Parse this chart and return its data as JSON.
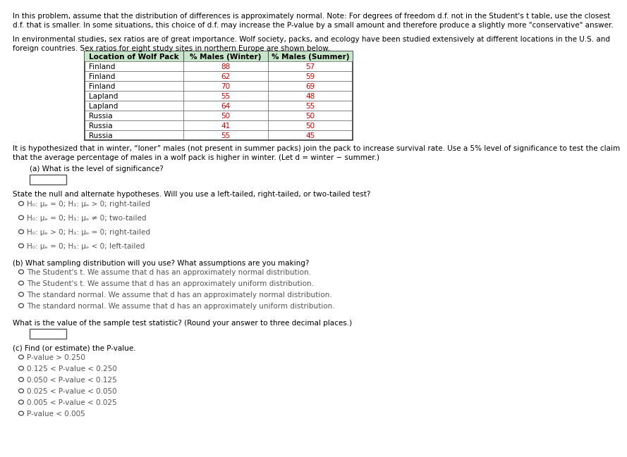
{
  "bg_color": "#ffffff",
  "text_color": "#000000",
  "red_color": "#cc0000",
  "gray_color": "#888888",
  "header_bg": "#c8e6c9",
  "intro_line1": "In this problem, assume that the distribution of differences is approximately normal. Note: For degrees of freedom d.f. not in the Student's t table, use the closest",
  "intro_line2": "d.f. that is smaller. In some situations, this choice of d.f. may increase the P-value by a small amount and therefore produce a slightly more \"conservative\" answer.",
  "para2_line1": "In environmental studies, sex ratios are of great importance. Wolf society, packs, and ecology have been studied extensively at different locations in the U.S. and",
  "para2_line2": "foreign countries. Sex ratios for eight study sites in northern Europe are shown below.",
  "table_header": [
    "Location of Wolf Pack",
    "% Males (Winter)",
    "% Males (Summer)"
  ],
  "table_data": [
    [
      "Finland",
      "88",
      "57"
    ],
    [
      "Finland",
      "62",
      "59"
    ],
    [
      "Finland",
      "70",
      "69"
    ],
    [
      "Lapland",
      "55",
      "48"
    ],
    [
      "Lapland",
      "64",
      "55"
    ],
    [
      "Russia",
      "50",
      "50"
    ],
    [
      "Russia",
      "41",
      "50"
    ],
    [
      "Russia",
      "55",
      "45"
    ]
  ],
  "hyp_line1": "It is hypothesized that in winter, “loner” males (not present in summer packs) join the pack to increase survival rate. Use a 5% level of significance to test the claim",
  "hyp_line2": "that the average percentage of males in a wolf pack is higher in winter. (Let d = winter − summer.)",
  "part_a_label": "(a) What is the level of significance?",
  "state_hyp_label": "State the null and alternate hypotheses. Will you use a left-tailed, right-tailed, or two-tailed test?",
  "part_a_opts": [
    [
      "H",
      "0",
      "d",
      " = 0; ",
      "H",
      "1",
      "d",
      " > 0; right-tailed"
    ],
    [
      "H",
      "0",
      "d",
      " = 0; ",
      "H",
      "1",
      "d",
      " ≠ 0; two-tailed"
    ],
    [
      "H",
      "0",
      "d",
      " > 0; ",
      "H",
      "1",
      "d",
      " = 0; right-tailed"
    ],
    [
      "H",
      "0",
      "d",
      " = 0; ",
      "H",
      "1",
      "d",
      " < 0; left-tailed"
    ]
  ],
  "part_a_plain": [
    "H₀: μₑ = 0; H₁: μₑ > 0; right-tailed",
    "H₀: μₑ = 0; H₁: μₑ ≠ 0; two-tailed",
    "H₀: μₑ > 0; H₁: μₑ = 0; right-tailed",
    "H₀: μₑ = 0; H₁: μₑ < 0; left-tailed"
  ],
  "part_b_label": "(b) What sampling distribution will you use? What assumptions are you making?",
  "part_b_opts": [
    "The Student's t. We assume that d has an approximately normal distribution.",
    "The Student's t. We assume that d has an approximately uniform distribution.",
    "The standard normal. We assume that d has an approximately normal distribution.",
    "The standard normal. We assume that d has an approximately uniform distribution."
  ],
  "test_stat_label": "What is the value of the sample test statistic? (Round your answer to three decimal places.)",
  "part_c_label": "(c) Find (or estimate) the P-value.",
  "part_c_opts": [
    "P-value > 0.250",
    "0.125 < P-value < 0.250",
    "0.050 < P-value < 0.125",
    "0.025 < P-value < 0.050",
    "0.005 < P-value < 0.025",
    "P-value < 0.005"
  ]
}
